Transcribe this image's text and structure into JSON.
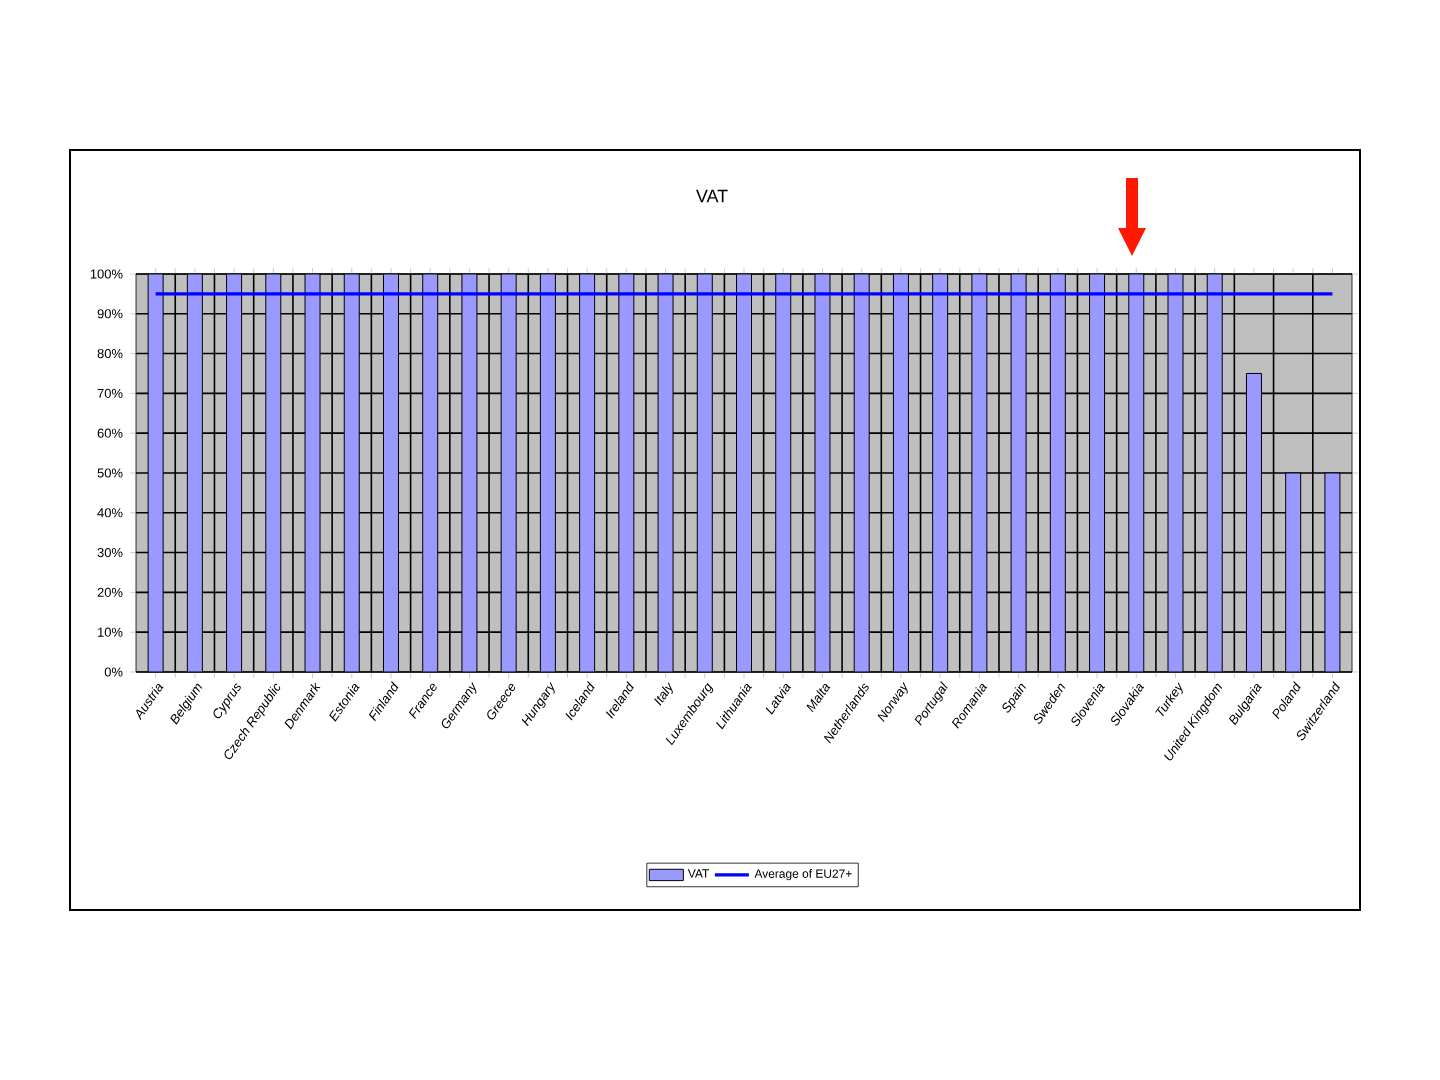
{
  "chart_data": {
    "type": "bar",
    "title": "VAT",
    "categories": [
      "Austria",
      "Belgium",
      "Cyprus",
      "Czech Republic",
      "Denmark",
      "Estonia",
      "Finland",
      "France",
      "Germany",
      "Greece",
      "Hungary",
      "Iceland",
      "Ireland",
      "Italy",
      "Luxembourg",
      "Lithuania",
      "Latvia",
      "Malta",
      "Netherlands",
      "Norway",
      "Portugal",
      "Romania",
      "Spain",
      "Sweden",
      "Slovenia",
      "Slovakia",
      "Turkey",
      "United Kingdom",
      "Bulgaria",
      "Poland",
      "Switzerland"
    ],
    "series": [
      {
        "name": "VAT",
        "color": "#9999ff",
        "values": [
          100,
          100,
          100,
          100,
          100,
          100,
          100,
          100,
          100,
          100,
          100,
          100,
          100,
          100,
          100,
          100,
          100,
          100,
          100,
          100,
          100,
          100,
          100,
          100,
          100,
          100,
          100,
          100,
          75,
          50,
          50
        ]
      },
      {
        "name": "Average of EU27+",
        "type": "line",
        "color": "#0000ff",
        "values": [
          95,
          95,
          95,
          95,
          95,
          95,
          95,
          95,
          95,
          95,
          95,
          95,
          95,
          95,
          95,
          95,
          95,
          95,
          95,
          95,
          95,
          95,
          95,
          95,
          95,
          95,
          95,
          95,
          95,
          95,
          95
        ]
      }
    ],
    "ylim": [
      0,
      100
    ],
    "yticks": [
      {
        "value": 0,
        "label": "0%"
      },
      {
        "value": 10,
        "label": "10%"
      },
      {
        "value": 20,
        "label": "20%"
      },
      {
        "value": 30,
        "label": "30%"
      },
      {
        "value": 40,
        "label": "40%"
      },
      {
        "value": 50,
        "label": "50%"
      },
      {
        "value": 60,
        "label": "60%"
      },
      {
        "value": 70,
        "label": "70%"
      },
      {
        "value": 80,
        "label": "80%"
      },
      {
        "value": 90,
        "label": "90%"
      },
      {
        "value": 100,
        "label": "100%"
      }
    ],
    "grid": true,
    "legend": "bottom",
    "marker": "none"
  }
}
